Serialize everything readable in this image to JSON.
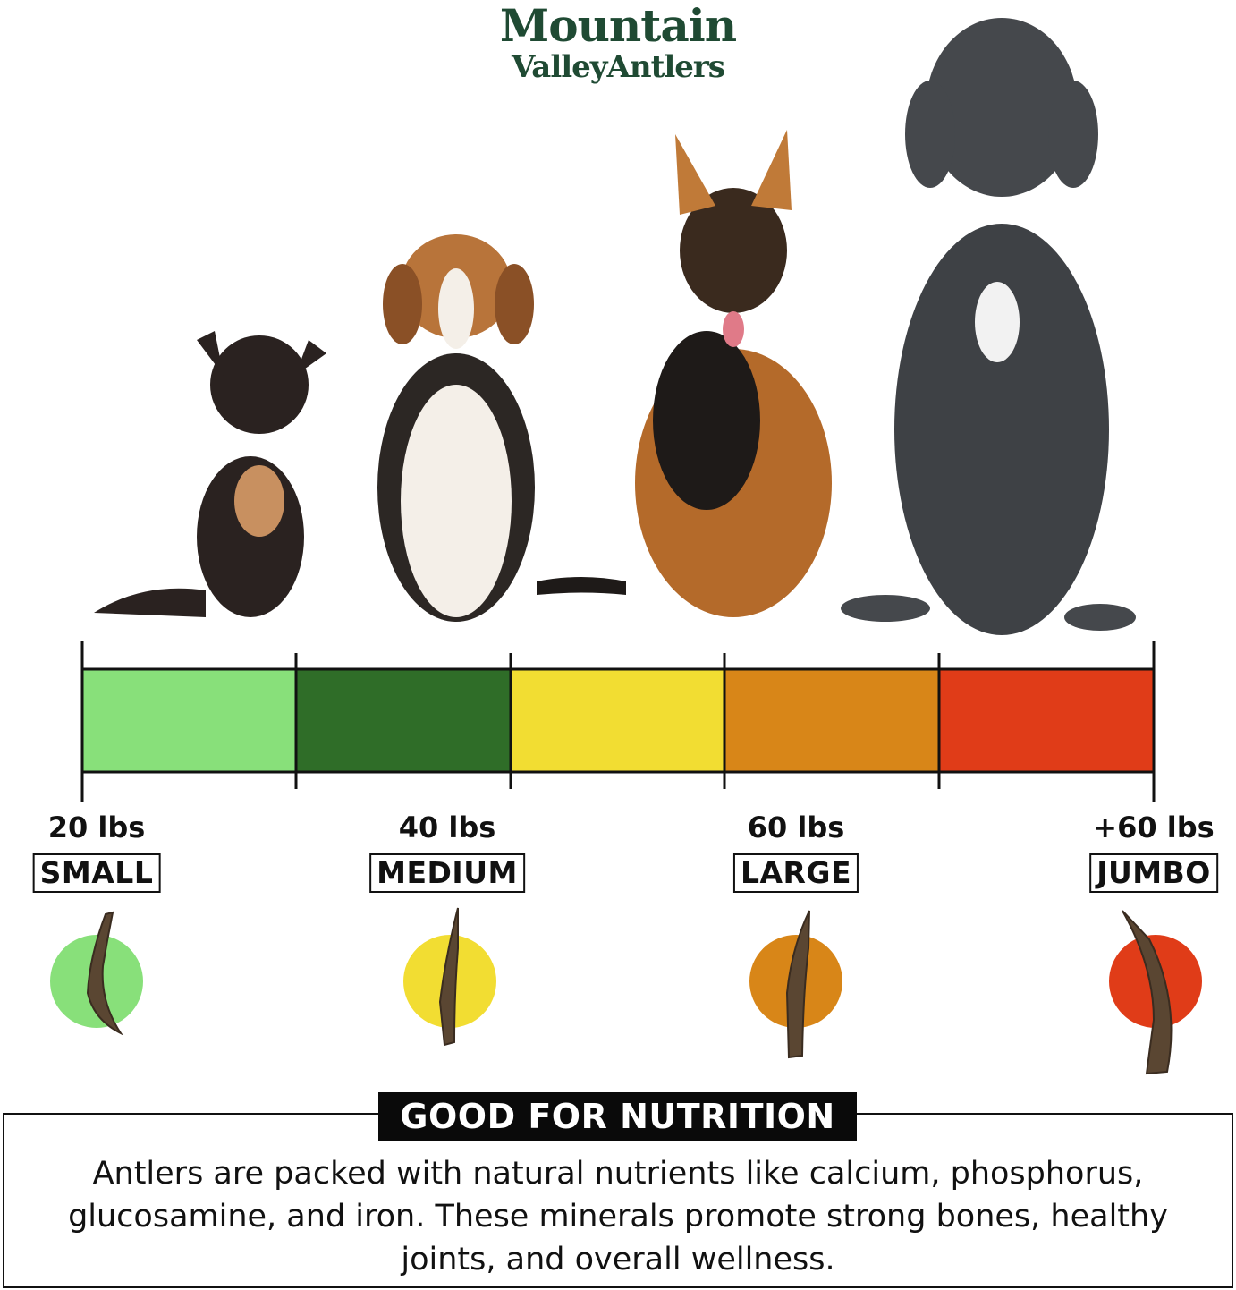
{
  "brand": {
    "line1": "Mountain",
    "line2": "ValleyAntlers",
    "color": "#1f4a33"
  },
  "scale": {
    "segment_colors": [
      "#88E07A",
      "#2F6D28",
      "#F2DD32",
      "#D88618",
      "#E03C18"
    ],
    "sizes": [
      {
        "weight": "20 lbs",
        "label": "SMALL",
        "color": "#88E07A"
      },
      {
        "weight": "40 lbs",
        "label": "MEDIUM",
        "color": "#F2DD32"
      },
      {
        "weight": "60 lbs",
        "label": "LARGE",
        "color": "#D88618"
      },
      {
        "weight": "+60 lbs",
        "label": "JUMBO",
        "color": "#E03C18"
      }
    ]
  },
  "dogs": [
    "chihuahua",
    "beagle",
    "german-shepherd",
    "great-dane"
  ],
  "nutrition": {
    "title": "GOOD FOR NUTRITION",
    "line1": "Antlers are packed with natural nutrients like calcium, phosphorus,",
    "line2": "glucosamine, and iron. These minerals promote strong bones, healthy",
    "line3": "joints, and overall wellness."
  }
}
